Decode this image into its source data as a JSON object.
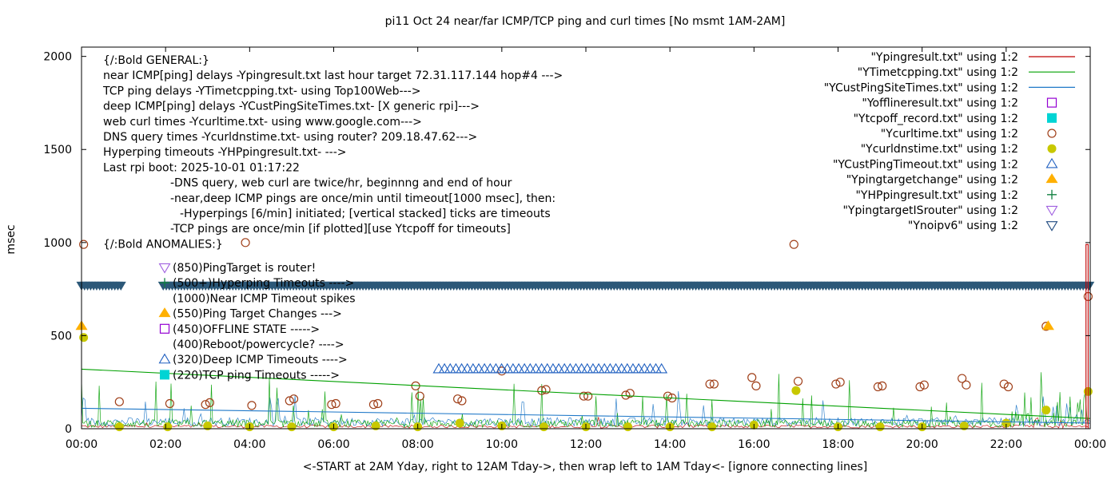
{
  "chart_data": {
    "type": "line",
    "title": "pi11 Oct 24  near/far ICMP/TCP ping and curl times [No msmt 1AM-2AM]",
    "xlabel": "<-START at 2AM Yday, right to 12AM Tday->, then wrap left to 1AM Tday<- [ignore connecting lines]",
    "ylabel": "msec",
    "xlim": [
      0,
      24
    ],
    "ylim": [
      0,
      2050
    ],
    "grid": false,
    "legend_position": "top-right",
    "x_ticks": [
      {
        "value": 0,
        "label": "00:00"
      },
      {
        "value": 2,
        "label": "02:00"
      },
      {
        "value": 4,
        "label": "04:00"
      },
      {
        "value": 6,
        "label": "06:00"
      },
      {
        "value": 8,
        "label": "08:00"
      },
      {
        "value": 10,
        "label": "10:00"
      },
      {
        "value": 12,
        "label": "12:00"
      },
      {
        "value": 14,
        "label": "14:00"
      },
      {
        "value": 16,
        "label": "16:00"
      },
      {
        "value": 18,
        "label": "18:00"
      },
      {
        "value": 20,
        "label": "20:00"
      },
      {
        "value": 22,
        "label": "22:00"
      },
      {
        "value": 24,
        "label": "00:00"
      }
    ],
    "y_ticks": [
      {
        "value": 0,
        "label": "0"
      },
      {
        "value": 500,
        "label": "500"
      },
      {
        "value": 1000,
        "label": "1000"
      },
      {
        "value": 1500,
        "label": "1500"
      },
      {
        "value": 2000,
        "label": "2000"
      }
    ],
    "legend": [
      {
        "label": "\"Ypingresult.txt\" using 1:2",
        "kind": "line",
        "color": "#c00000"
      },
      {
        "label": "\"YTimetcpping.txt\" using 1:2",
        "kind": "line",
        "color": "#00a000"
      },
      {
        "label": "\"YCustPingSiteTimes.txt\" using 1:2",
        "kind": "line",
        "color": "#1f78c8"
      },
      {
        "label": "\"Yofflineresult.txt\" using 1:2",
        "kind": "open-square",
        "color": "#9400d3"
      },
      {
        "label": "\"Ytcpoff_record.txt\" using 1:2",
        "kind": "filled-square",
        "color": "#00d4d4"
      },
      {
        "label": "\"Ycurltime.txt\" using 1:2",
        "kind": "open-circle",
        "color": "#a0401a"
      },
      {
        "label": "\"Ycurldnstime.txt\" using 1:2",
        "kind": "filled-circle",
        "color": "#c8c800"
      },
      {
        "label": "\"YCustPingTimeout.txt\" using 1:2",
        "kind": "open-triangle",
        "color": "#2060c0"
      },
      {
        "label": "\"Ypingtargetchange\" using 1:2",
        "kind": "filled-triangle",
        "color": "#ffb000"
      },
      {
        "label": "\"YHPpingresult.txt\" using 1:2",
        "kind": "plus",
        "color": "#108040"
      },
      {
        "label": "\"YpingtargetISrouter\" using 1:2",
        "kind": "open-down-triangle",
        "color": "#a060e0"
      },
      {
        "label": "\"Ynoipv6\" using 1:2",
        "kind": "open-down-triangle",
        "color": "#1f4a80"
      }
    ],
    "annotations": [
      "{/:Bold GENERAL:}",
      "near ICMP[ping] delays -Ypingresult.txt last hour target 72.31.117.144 hop#4 --->",
      "TCP ping delays -YTimetcpping.txt- using Top100Web--->",
      "deep ICMP[ping] delays -YCustPingSiteTimes.txt- [X generic rpi]--->",
      "web curl times -Ycurltime.txt- using www.google.com--->",
      "DNS query times -Ycurldnstime.txt- using router? 209.18.47.62--->",
      "Hyperping timeouts -YHPpingresult.txt- --->",
      "Last rpi boot: 2025-10-01 01:17:22",
      "-DNS query, web curl are twice/hr, beginnng and end of hour",
      "-near,deep ICMP pings are once/min until timeout[1000 msec], then:",
      "-Hyperpings [6/min] initiated; [vertical stacked] ticks are timeouts",
      "-TCP pings are once/min [if plotted][use Ytcpoff for timeouts]",
      "{/:Bold ANOMALIES:}"
    ],
    "anomaly_legend": [
      {
        "label": "(850)PingTarget is router!",
        "kind": "open-down-triangle",
        "color": "#a060e0"
      },
      {
        "label": "(500+)Hyperping Timeouts ---->",
        "kind": "plus",
        "color": "#108040"
      },
      {
        "label": "(1000)Near ICMP Timeout spikes",
        "kind": "none",
        "color": "#000000"
      },
      {
        "label": "(550)Ping Target Changes --->",
        "kind": "filled-triangle",
        "color": "#ffb000"
      },
      {
        "label": "(450)OFFLINE STATE ----->",
        "kind": "open-square",
        "color": "#9400d3"
      },
      {
        "label": "(400)Reboot/powercycle? ---->",
        "kind": "none",
        "color": "#000000"
      },
      {
        "label": "(320)Deep ICMP Timeouts ---->",
        "kind": "open-triangle",
        "color": "#2060c0"
      },
      {
        "label": "(220)TCP ping Timeouts ----->",
        "kind": "filled-square",
        "color": "#00d4d4"
      }
    ],
    "series": [
      {
        "name": "Ycurltime.txt",
        "kind": "open-circle",
        "color": "#a0401a",
        "points": [
          [
            0.05,
            990
          ],
          [
            0.9,
            145
          ],
          [
            2.1,
            135
          ],
          [
            2.95,
            130
          ],
          [
            3.05,
            140
          ],
          [
            3.9,
            1000
          ],
          [
            4.05,
            125
          ],
          [
            4.95,
            150
          ],
          [
            5.05,
            160
          ],
          [
            5.95,
            130
          ],
          [
            6.05,
            135
          ],
          [
            6.95,
            130
          ],
          [
            7.05,
            135
          ],
          [
            7.95,
            230
          ],
          [
            8.05,
            175
          ],
          [
            8.95,
            160
          ],
          [
            9.05,
            150
          ],
          [
            10.0,
            310
          ],
          [
            10.95,
            205
          ],
          [
            11.05,
            210
          ],
          [
            11.95,
            175
          ],
          [
            12.05,
            175
          ],
          [
            12.95,
            180
          ],
          [
            13.05,
            190
          ],
          [
            13.95,
            175
          ],
          [
            14.05,
            165
          ],
          [
            14.95,
            240
          ],
          [
            15.05,
            240
          ],
          [
            15.95,
            275
          ],
          [
            16.05,
            230
          ],
          [
            16.95,
            990
          ],
          [
            17.05,
            255
          ],
          [
            17.95,
            240
          ],
          [
            18.05,
            250
          ],
          [
            18.95,
            225
          ],
          [
            19.05,
            230
          ],
          [
            19.95,
            225
          ],
          [
            20.05,
            235
          ],
          [
            20.95,
            270
          ],
          [
            21.05,
            235
          ],
          [
            21.95,
            240
          ],
          [
            22.05,
            225
          ],
          [
            22.95,
            550
          ],
          [
            23.95,
            710
          ]
        ]
      },
      {
        "name": "Ycurldnstime.txt",
        "kind": "filled-circle",
        "color": "#c8c800",
        "points": [
          [
            0.05,
            490
          ],
          [
            0.9,
            10
          ],
          [
            2.05,
            10
          ],
          [
            3.0,
            15
          ],
          [
            4.0,
            10
          ],
          [
            5.0,
            10
          ],
          [
            6.0,
            10
          ],
          [
            7.0,
            15
          ],
          [
            8.0,
            10
          ],
          [
            9.0,
            30
          ],
          [
            10.0,
            15
          ],
          [
            11.0,
            10
          ],
          [
            12.0,
            10
          ],
          [
            13.0,
            10
          ],
          [
            14.0,
            10
          ],
          [
            15.0,
            10
          ],
          [
            16.0,
            20
          ],
          [
            17.0,
            205
          ],
          [
            18.0,
            10
          ],
          [
            19.0,
            10
          ],
          [
            20.0,
            10
          ],
          [
            21.0,
            15
          ],
          [
            22.0,
            30
          ],
          [
            22.95,
            100
          ],
          [
            23.95,
            200
          ]
        ]
      },
      {
        "name": "Ypingtargetchange",
        "kind": "filled-triangle",
        "color": "#ffb000",
        "points": [
          [
            0.0,
            550
          ],
          [
            23.0,
            550
          ]
        ]
      },
      {
        "name": "YCustPingTimeout.txt",
        "kind": "open-triangle",
        "color": "#2060c0",
        "range_x": [
          8.5,
          13.8
        ],
        "value": 320,
        "count": 40
      },
      {
        "name": "Ynoipv6",
        "kind": "filled-down-triangle",
        "color": "#2c5878",
        "range_x": [
          0,
          24
        ],
        "value": 770,
        "gaps": [
          [
            1.0,
            1.9
          ]
        ]
      },
      {
        "name": "YTimetcpping.txt trend",
        "kind": "line",
        "color": "#00a000",
        "points": [
          [
            0,
            320
          ],
          [
            24,
            55
          ]
        ]
      },
      {
        "name": "YCustPingSiteTimes.txt trend",
        "kind": "line",
        "color": "#1f78c8",
        "points": [
          [
            0,
            110
          ],
          [
            24,
            30
          ]
        ]
      },
      {
        "name": "Ypingresult.txt spike",
        "kind": "line",
        "color": "#c00000",
        "points": [
          [
            23.9,
            0
          ],
          [
            23.9,
            990
          ],
          [
            23.95,
            990
          ],
          [
            23.95,
            0
          ]
        ]
      }
    ]
  }
}
